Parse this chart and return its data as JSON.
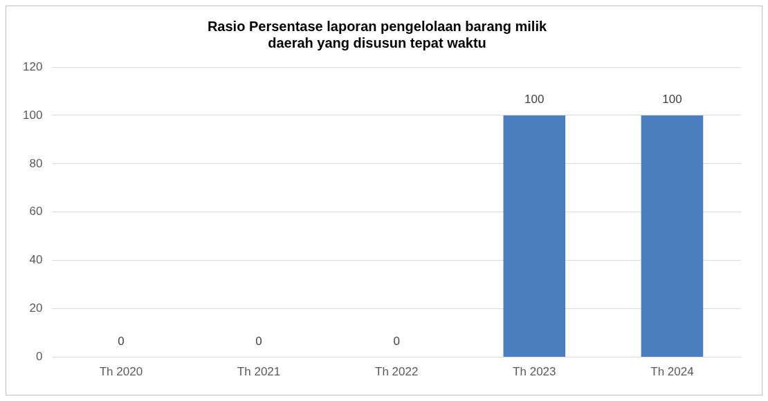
{
  "chart_data": {
    "type": "bar",
    "title": "Rasio Persentase laporan pengelolaan barang milik daerah yang disusun tepat waktu",
    "categories": [
      "Th 2020",
      "Th 2021",
      "Th 2022",
      "Th 2023",
      "Th 2024"
    ],
    "values": [
      0,
      0,
      0,
      100,
      100
    ],
    "color": "#4a7ebf",
    "ylim": [
      0,
      120
    ],
    "yticks": [
      0,
      20,
      40,
      60,
      80,
      100,
      120
    ],
    "grid": "y",
    "data_labels": true,
    "legend": false
  }
}
